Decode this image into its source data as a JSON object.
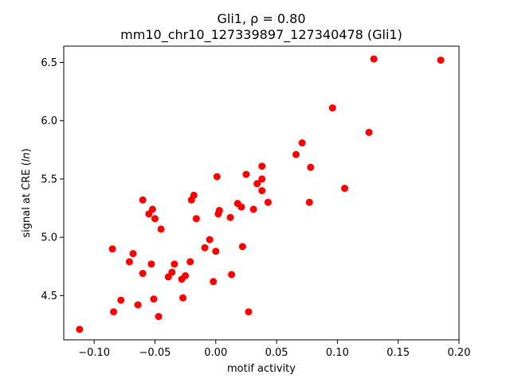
{
  "chart_data": {
    "type": "scatter",
    "title_line1": "Gli1, ρ = 0.80",
    "title_line2": "mm10_chr10_127339897_127340478 (Gli1)",
    "xlabel": "motif activity",
    "ylabel_prefix": "signal at CRE (",
    "ylabel_italic": "ln",
    "ylabel_suffix": ")",
    "xlim": [
      -0.125,
      0.2
    ],
    "ylim": [
      4.12,
      6.64
    ],
    "xticks": [
      -0.1,
      -0.05,
      0.0,
      0.05,
      0.1,
      0.15,
      0.2
    ],
    "xtick_labels": [
      "−0.10",
      "−0.05",
      "0.00",
      "0.05",
      "0.10",
      "0.15",
      "0.20"
    ],
    "yticks": [
      4.5,
      5.0,
      5.5,
      6.0,
      6.5
    ],
    "ytick_labels": [
      "4.5",
      "5.0",
      "5.5",
      "6.0",
      "6.5"
    ],
    "grid": false,
    "marker_color": "#ff0000",
    "points": [
      {
        "x": -0.112,
        "y": 4.21
      },
      {
        "x": -0.085,
        "y": 4.9
      },
      {
        "x": -0.084,
        "y": 4.36
      },
      {
        "x": -0.078,
        "y": 4.46
      },
      {
        "x": -0.071,
        "y": 4.79
      },
      {
        "x": -0.068,
        "y": 4.86
      },
      {
        "x": -0.064,
        "y": 4.42
      },
      {
        "x": -0.06,
        "y": 5.32
      },
      {
        "x": -0.06,
        "y": 4.69
      },
      {
        "x": -0.055,
        "y": 5.2
      },
      {
        "x": -0.053,
        "y": 4.77
      },
      {
        "x": -0.052,
        "y": 5.24
      },
      {
        "x": -0.051,
        "y": 4.47
      },
      {
        "x": -0.05,
        "y": 5.16
      },
      {
        "x": -0.047,
        "y": 4.32
      },
      {
        "x": -0.045,
        "y": 5.07
      },
      {
        "x": -0.039,
        "y": 4.66
      },
      {
        "x": -0.036,
        "y": 4.7
      },
      {
        "x": -0.034,
        "y": 4.77
      },
      {
        "x": -0.028,
        "y": 4.64
      },
      {
        "x": -0.027,
        "y": 4.48
      },
      {
        "x": -0.025,
        "y": 4.67
      },
      {
        "x": -0.021,
        "y": 4.79
      },
      {
        "x": -0.02,
        "y": 5.32
      },
      {
        "x": -0.018,
        "y": 5.36
      },
      {
        "x": -0.016,
        "y": 5.16
      },
      {
        "x": -0.009,
        "y": 4.91
      },
      {
        "x": -0.005,
        "y": 4.98
      },
      {
        "x": -0.002,
        "y": 4.62
      },
      {
        "x": 0.0,
        "y": 4.88
      },
      {
        "x": 0.001,
        "y": 5.52
      },
      {
        "x": 0.002,
        "y": 5.2
      },
      {
        "x": 0.003,
        "y": 5.23
      },
      {
        "x": 0.012,
        "y": 5.17
      },
      {
        "x": 0.013,
        "y": 4.68
      },
      {
        "x": 0.018,
        "y": 5.29
      },
      {
        "x": 0.021,
        "y": 5.26
      },
      {
        "x": 0.022,
        "y": 4.92
      },
      {
        "x": 0.025,
        "y": 5.54
      },
      {
        "x": 0.027,
        "y": 4.36
      },
      {
        "x": 0.031,
        "y": 5.24
      },
      {
        "x": 0.034,
        "y": 5.46
      },
      {
        "x": 0.038,
        "y": 5.61
      },
      {
        "x": 0.038,
        "y": 5.5
      },
      {
        "x": 0.038,
        "y": 5.4
      },
      {
        "x": 0.043,
        "y": 5.3
      },
      {
        "x": 0.066,
        "y": 5.71
      },
      {
        "x": 0.071,
        "y": 5.81
      },
      {
        "x": 0.077,
        "y": 5.3
      },
      {
        "x": 0.078,
        "y": 5.6
      },
      {
        "x": 0.096,
        "y": 6.11
      },
      {
        "x": 0.106,
        "y": 5.42
      },
      {
        "x": 0.126,
        "y": 5.9
      },
      {
        "x": 0.13,
        "y": 6.53
      },
      {
        "x": 0.185,
        "y": 6.52
      }
    ]
  }
}
